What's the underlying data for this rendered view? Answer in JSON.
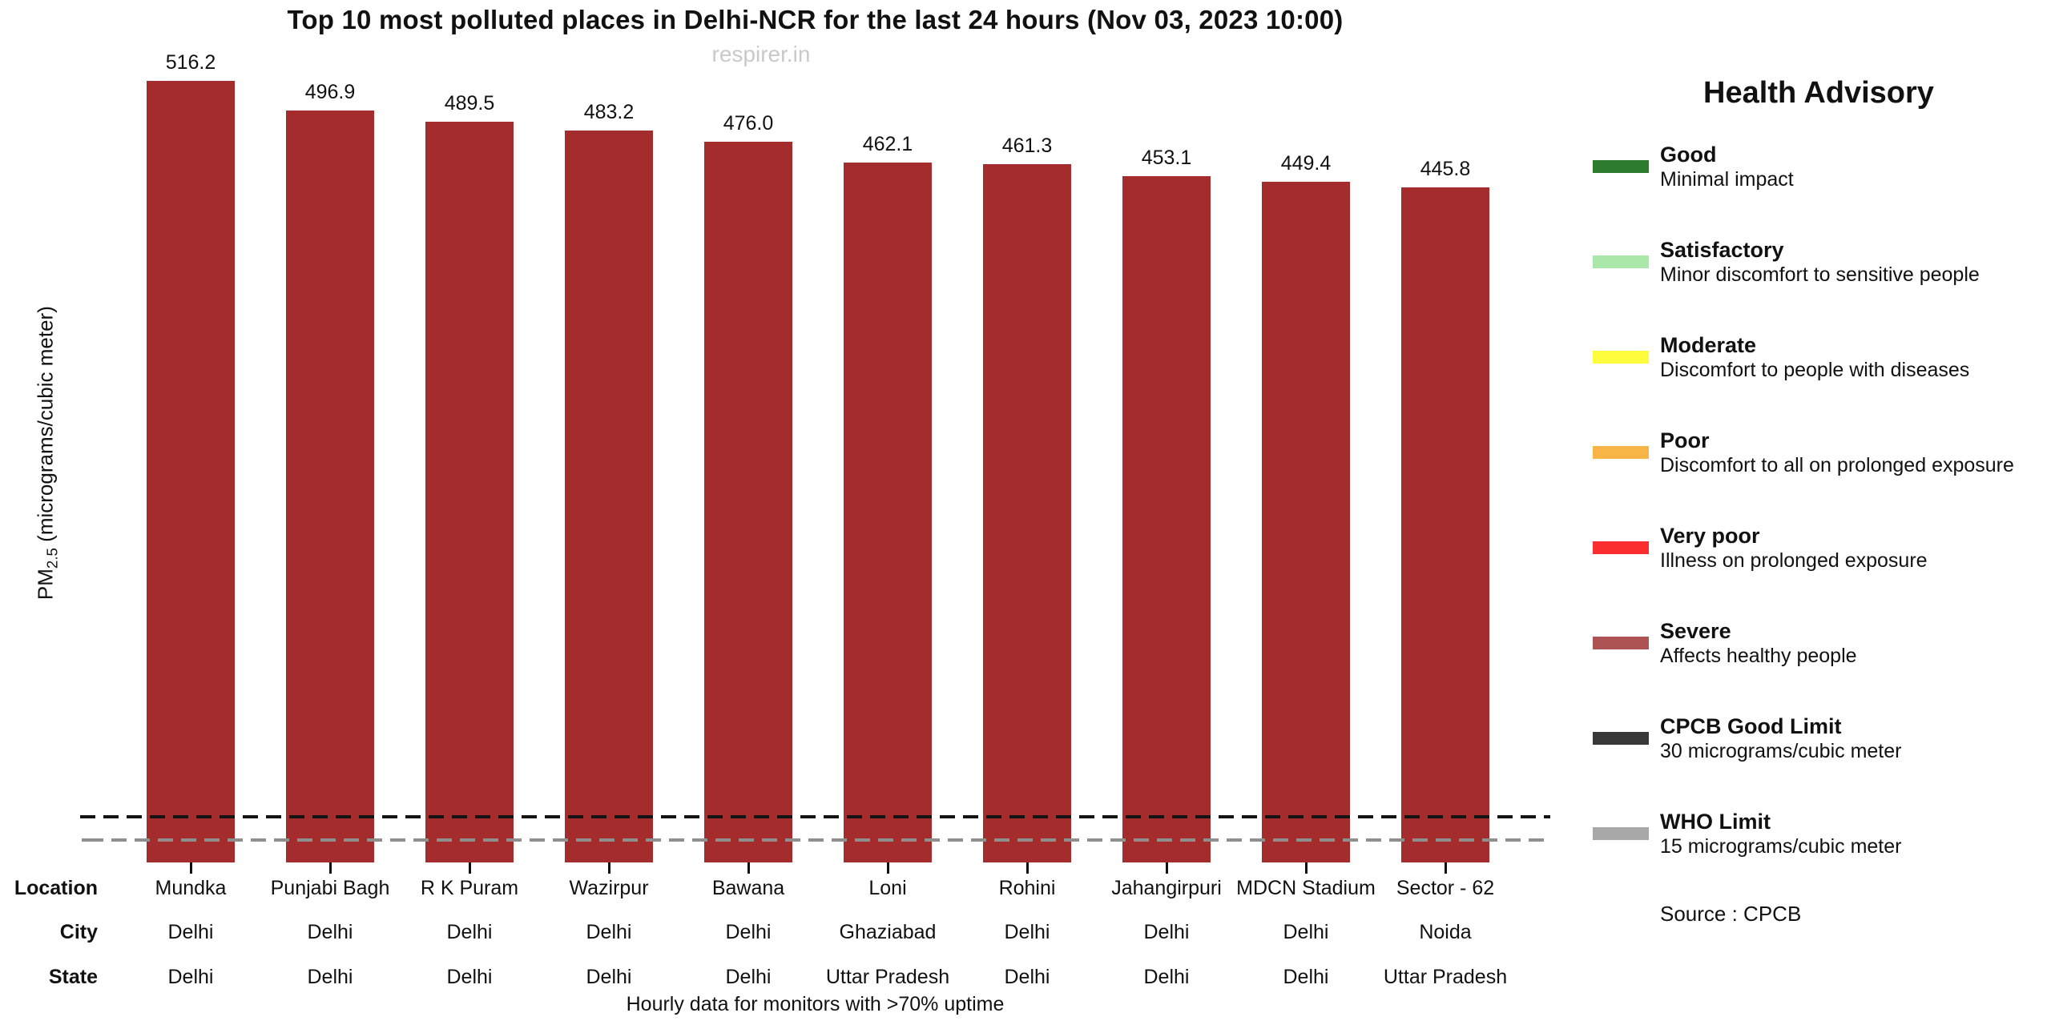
{
  "title": "Top 10 most polluted places in Delhi-NCR for the last 24 hours (Nov 03, 2023 10:00)",
  "watermark": "respirer.in",
  "y_axis": {
    "prefix": "PM",
    "subscript": "2.5",
    "suffix": " (micrograms/cubic meter)"
  },
  "footnote": "Hourly data for monitors with >70% uptime",
  "row_headers": {
    "location": "Location",
    "city": "City",
    "state": "State"
  },
  "chart_data": {
    "type": "bar",
    "title": "Top 10 most polluted places in Delhi-NCR for the last 24 hours (Nov 03, 2023 10:00)",
    "ylabel": "PM2.5 (micrograms/cubic meter)",
    "ylim": [
      0,
      540
    ],
    "grid": false,
    "bar_color": "#a52c2c",
    "categories": [
      "Mundka",
      "Punjabi Bagh",
      "R K Puram",
      "Wazirpur",
      "Bawana",
      "Loni",
      "Rohini",
      "Jahangirpuri",
      "MDCN Stadium",
      "Sector - 62"
    ],
    "values": [
      516.2,
      496.9,
      489.5,
      483.2,
      476.0,
      462.1,
      461.3,
      453.1,
      449.4,
      445.8
    ],
    "rows": {
      "city": [
        "Delhi",
        "Delhi",
        "Delhi",
        "Delhi",
        "Delhi",
        "Ghaziabad",
        "Delhi",
        "Delhi",
        "Delhi",
        "Noida"
      ],
      "state": [
        "Delhi",
        "Delhi",
        "Delhi",
        "Delhi",
        "Delhi",
        "Uttar Pradesh",
        "Delhi",
        "Delhi",
        "Delhi",
        "Uttar Pradesh"
      ]
    },
    "reference_lines": [
      {
        "name": "CPCB Good Limit",
        "value": 30,
        "color": "#141414",
        "style": "dashed"
      },
      {
        "name": "WHO Limit",
        "value": 15,
        "color": "#8f8f8f",
        "style": "dashed"
      }
    ]
  },
  "legend": {
    "title": "Health Advisory",
    "items": [
      {
        "label": "Good",
        "desc": "Minimal impact",
        "color": "#2d7b2d"
      },
      {
        "label": "Satisfactory",
        "desc": "Minor discomfort to sensitive people",
        "color": "#a9e8a9"
      },
      {
        "label": "Moderate",
        "desc": "Discomfort to people with diseases",
        "color": "#fdfd3d"
      },
      {
        "label": "Poor",
        "desc": "Discomfort to all on prolonged exposure",
        "color": "#f7b547"
      },
      {
        "label": "Very poor",
        "desc": "Illness on prolonged exposure",
        "color": "#fa2e2e"
      },
      {
        "label": "Severe",
        "desc": "Affects healthy people",
        "color": "#ad5353"
      },
      {
        "label": "CPCB Good Limit",
        "desc": "30 micrograms/cubic meter",
        "color": "#383838"
      },
      {
        "label": "WHO Limit",
        "desc": "15 micrograms/cubic meter",
        "color": "#a8a8a8"
      }
    ],
    "source": "Source : CPCB"
  }
}
